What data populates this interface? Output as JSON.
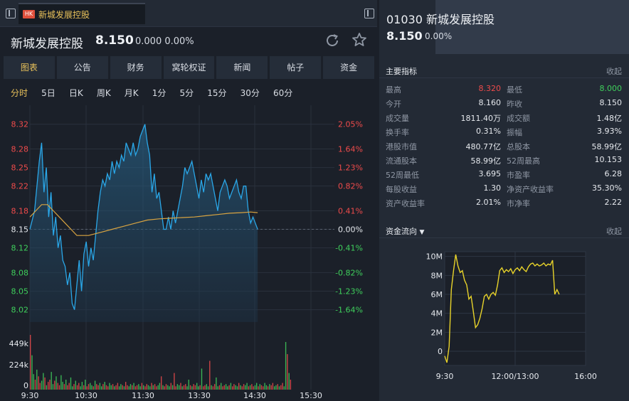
{
  "tab": {
    "badge": "HK",
    "title": "新城发展控股"
  },
  "quote": {
    "name": "新城发展控股",
    "price": "8.150",
    "change": "0.000",
    "change_pct": "0.00%"
  },
  "nav_tabs": [
    "图表",
    "公告",
    "财务",
    "窝轮权证",
    "新闻",
    "帖子",
    "资金"
  ],
  "period_tabs": [
    "分时",
    "5日",
    "日K",
    "周K",
    "月K",
    "1分",
    "5分",
    "15分",
    "30分",
    "60分"
  ],
  "right": {
    "code": "01030",
    "name": "新城发展控股",
    "price": "8.150",
    "change_pct": "0.00%",
    "metrics_title": "主要指标",
    "collapse_label": "收起",
    "flow_title": "资金流向",
    "metrics": [
      [
        {
          "label": "最高",
          "value": "8.320",
          "color": "#ef4b4b"
        },
        {
          "label": "最低",
          "value": "8.000",
          "color": "#3fcf5c"
        }
      ],
      [
        {
          "label": "今开",
          "value": "8.160",
          "color": "#e6e9ee"
        },
        {
          "label": "昨收",
          "value": "8.150",
          "color": "#e6e9ee"
        }
      ],
      [
        {
          "label": "成交量",
          "value": "1811.40万",
          "color": "#e6e9ee"
        },
        {
          "label": "成交额",
          "value": "1.48亿",
          "color": "#e6e9ee"
        }
      ],
      [
        {
          "label": "换手率",
          "value": "0.31%",
          "color": "#e6e9ee"
        },
        {
          "label": "振幅",
          "value": "3.93%",
          "color": "#e6e9ee"
        }
      ],
      [
        {
          "label": "港股市值",
          "value": "480.77亿",
          "color": "#e6e9ee"
        },
        {
          "label": "总股本",
          "value": "58.99亿",
          "color": "#e6e9ee"
        }
      ],
      [
        {
          "label": "流通股本",
          "value": "58.99亿",
          "color": "#e6e9ee"
        },
        {
          "label": "52周最高",
          "value": "10.153",
          "color": "#e6e9ee"
        }
      ],
      [
        {
          "label": "52周最低",
          "value": "3.695",
          "color": "#e6e9ee"
        },
        {
          "label": "市盈率",
          "value": "6.28",
          "color": "#e6e9ee"
        }
      ],
      [
        {
          "label": "每股收益",
          "value": "1.30",
          "color": "#e6e9ee"
        },
        {
          "label": "净资产收益率",
          "value": "35.30%",
          "color": "#e6e9ee"
        }
      ],
      [
        {
          "label": "资产收益率",
          "value": "2.01%",
          "color": "#e6e9ee"
        },
        {
          "label": "市净率",
          "value": "2.22",
          "color": "#e6e9ee"
        }
      ]
    ]
  },
  "colors": {
    "up": "#ef4b4b",
    "down": "#3fcf5c",
    "accent": "#e8c15a",
    "price_line": "#2aa7e8",
    "avg_line": "#d9a441",
    "flow_line": "#e8d32a"
  },
  "chart_data": [
    {
      "type": "line",
      "name": "intraday",
      "x_ticks": [
        "9:30",
        "10:30",
        "11:30",
        "13:30",
        "14:30",
        "15:30"
      ],
      "y_ticks_price": [
        "8.32",
        "8.28",
        "8.25",
        "8.22",
        "8.18",
        "8.15",
        "8.12",
        "8.08",
        "8.05",
        "8.02"
      ],
      "y_ticks_pct": [
        "2.05%",
        "1.64%",
        "1.23%",
        "0.82%",
        "0.41%",
        "0.00%",
        "-0.41%",
        "-0.82%",
        "-1.23%",
        "-1.64%"
      ],
      "ylim": [
        8.0,
        8.33
      ],
      "prev_close": 8.15,
      "price_series": [
        [
          0,
          8.15
        ],
        [
          4,
          8.18
        ],
        [
          8,
          8.26
        ],
        [
          10,
          8.29
        ],
        [
          12,
          8.21
        ],
        [
          14,
          8.25
        ],
        [
          16,
          8.17
        ],
        [
          18,
          8.21
        ],
        [
          20,
          8.14
        ],
        [
          22,
          8.17
        ],
        [
          24,
          8.12
        ],
        [
          26,
          8.14
        ],
        [
          28,
          8.1
        ],
        [
          30,
          8.09
        ],
        [
          32,
          8.06
        ],
        [
          34,
          8.08
        ],
        [
          36,
          8.03
        ],
        [
          38,
          8.02
        ],
        [
          40,
          8.06
        ],
        [
          42,
          8.1
        ],
        [
          44,
          8.05
        ],
        [
          46,
          8.11
        ],
        [
          48,
          8.13
        ],
        [
          50,
          8.09
        ],
        [
          52,
          8.12
        ],
        [
          54,
          8.1
        ],
        [
          56,
          8.14
        ],
        [
          58,
          8.18
        ],
        [
          60,
          8.21
        ],
        [
          62,
          8.23
        ],
        [
          64,
          8.22
        ],
        [
          66,
          8.24
        ],
        [
          68,
          8.23
        ],
        [
          70,
          8.26
        ],
        [
          72,
          8.24
        ],
        [
          74,
          8.26
        ],
        [
          76,
          8.25
        ],
        [
          78,
          8.27
        ],
        [
          80,
          8.26
        ],
        [
          82,
          8.29
        ],
        [
          84,
          8.28
        ],
        [
          86,
          8.27
        ],
        [
          88,
          8.29
        ],
        [
          90,
          8.27
        ],
        [
          92,
          8.28
        ],
        [
          94,
          8.3
        ],
        [
          96,
          8.31
        ],
        [
          98,
          8.32
        ],
        [
          100,
          8.29
        ],
        [
          102,
          8.27
        ],
        [
          104,
          8.21
        ],
        [
          106,
          8.24
        ],
        [
          108,
          8.2
        ],
        [
          110,
          8.21
        ],
        [
          112,
          8.18
        ],
        [
          114,
          8.15
        ],
        [
          116,
          8.15
        ],
        [
          118,
          8.17
        ],
        [
          120,
          8.15
        ],
        [
          122,
          8.18
        ],
        [
          124,
          8.16
        ],
        [
          126,
          8.18
        ],
        [
          128,
          8.2
        ],
        [
          130,
          8.22
        ],
        [
          132,
          8.25
        ],
        [
          134,
          8.24
        ],
        [
          136,
          8.25
        ],
        [
          138,
          8.26
        ],
        [
          140,
          8.24
        ],
        [
          142,
          8.22
        ],
        [
          144,
          8.2
        ],
        [
          146,
          8.23
        ],
        [
          148,
          8.21
        ],
        [
          150,
          8.24
        ],
        [
          152,
          8.23
        ],
        [
          154,
          8.24
        ],
        [
          156,
          8.22
        ],
        [
          158,
          8.2
        ],
        [
          160,
          8.18
        ],
        [
          162,
          8.21
        ],
        [
          164,
          8.22
        ],
        [
          166,
          8.23
        ],
        [
          168,
          8.22
        ],
        [
          170,
          8.2
        ],
        [
          172,
          8.21
        ],
        [
          174,
          8.22
        ],
        [
          176,
          8.23
        ],
        [
          178,
          8.21
        ],
        [
          180,
          8.2
        ],
        [
          182,
          8.22
        ],
        [
          184,
          8.22
        ],
        [
          186,
          8.18
        ],
        [
          188,
          8.16
        ],
        [
          190,
          8.17
        ],
        [
          192,
          8.16
        ],
        [
          194,
          8.15
        ]
      ],
      "avg_series": [
        [
          0,
          8.17
        ],
        [
          5,
          8.18
        ],
        [
          10,
          8.19
        ],
        [
          15,
          8.19
        ],
        [
          20,
          8.18
        ],
        [
          25,
          8.17
        ],
        [
          30,
          8.16
        ],
        [
          35,
          8.15
        ],
        [
          40,
          8.14
        ],
        [
          45,
          8.14
        ],
        [
          50,
          8.14
        ],
        [
          60,
          8.145
        ],
        [
          70,
          8.15
        ],
        [
          80,
          8.155
        ],
        [
          90,
          8.16
        ],
        [
          100,
          8.165
        ],
        [
          110,
          8.167
        ],
        [
          120,
          8.168
        ],
        [
          130,
          8.169
        ],
        [
          140,
          8.17
        ],
        [
          150,
          8.172
        ],
        [
          160,
          8.174
        ],
        [
          170,
          8.176
        ],
        [
          180,
          8.177
        ],
        [
          188,
          8.178
        ],
        [
          194,
          8.177
        ]
      ]
    },
    {
      "type": "bar",
      "name": "volume",
      "y_ticks": [
        "449k",
        "224k",
        "0"
      ],
      "ylim": [
        0,
        449000
      ],
      "values": [
        520000,
        310000,
        140000,
        90000,
        180000,
        120000,
        60000,
        80000,
        150000,
        110000,
        40000,
        70000,
        90000,
        160000,
        50000,
        80000,
        120000,
        60000,
        40000,
        130000,
        70000,
        50000,
        90000,
        40000,
        60000,
        110000,
        30000,
        50000,
        80000,
        40000,
        60000,
        30000,
        70000,
        40000,
        90000,
        30000,
        50000,
        60000,
        40000,
        30000,
        80000,
        50000,
        40000,
        60000,
        30000,
        50000,
        70000,
        40000,
        30000,
        60000,
        40000,
        50000,
        30000,
        40000,
        60000,
        30000,
        50000,
        40000,
        30000,
        70000,
        40000,
        30000,
        50000,
        40000,
        60000,
        30000,
        40000,
        50000,
        30000,
        60000,
        40000,
        30000,
        50000,
        40000,
        30000,
        60000,
        40000,
        50000,
        30000,
        40000,
        60000,
        120000,
        40000,
        30000,
        50000,
        40000,
        30000,
        60000,
        40000,
        150000,
        30000,
        50000,
        40000,
        60000,
        30000,
        40000,
        50000,
        30000,
        90000,
        40000,
        30000,
        50000,
        40000,
        60000,
        30000,
        40000,
        190000,
        30000,
        40000,
        50000,
        30000,
        260000,
        40000,
        30000,
        50000,
        110000,
        30000,
        40000,
        60000,
        30000,
        40000,
        50000,
        30000,
        40000,
        60000,
        30000,
        50000,
        40000,
        30000,
        60000,
        40000,
        30000,
        50000,
        40000,
        60000,
        30000,
        40000,
        50000,
        30000,
        40000,
        60000,
        30000,
        50000,
        40000,
        30000,
        60000,
        40000,
        30000,
        50000,
        40000,
        60000,
        30000,
        40000,
        50000,
        30000,
        40000,
        60000,
        30000,
        430000,
        320000,
        150000,
        90000
      ]
    },
    {
      "type": "line",
      "name": "资金流向",
      "x_ticks": [
        "9:30",
        "12:00/13:00",
        "16:00"
      ],
      "y_ticks": [
        "10M",
        "8M",
        "6M",
        "4M",
        "2M",
        "0"
      ],
      "ylim": [
        -1.5,
        10.5
      ],
      "series": [
        [
          0,
          -0.5
        ],
        [
          1,
          -1.2
        ],
        [
          2,
          0.5
        ],
        [
          3,
          6.5
        ],
        [
          4,
          8.5
        ],
        [
          5,
          10.2
        ],
        [
          6,
          9.0
        ],
        [
          7,
          8.3
        ],
        [
          8,
          8.5
        ],
        [
          9,
          7.5
        ],
        [
          10,
          7.0
        ],
        [
          11,
          5.5
        ],
        [
          12,
          5.8
        ],
        [
          13,
          4.2
        ],
        [
          14,
          2.5
        ],
        [
          15,
          2.8
        ],
        [
          16,
          3.5
        ],
        [
          17,
          4.5
        ],
        [
          18,
          5.8
        ],
        [
          19,
          6.0
        ],
        [
          20,
          5.5
        ],
        [
          21,
          6.0
        ],
        [
          22,
          6.2
        ],
        [
          23,
          5.9
        ],
        [
          24,
          7.0
        ],
        [
          25,
          8.5
        ],
        [
          26,
          8.8
        ],
        [
          27,
          8.3
        ],
        [
          28,
          8.6
        ],
        [
          29,
          8.4
        ],
        [
          30,
          8.7
        ],
        [
          31,
          8.2
        ],
        [
          32,
          8.6
        ],
        [
          33,
          8.8
        ],
        [
          34,
          8.5
        ],
        [
          35,
          8.9
        ],
        [
          36,
          8.6
        ],
        [
          37,
          8.4
        ],
        [
          38,
          8.9
        ],
        [
          39,
          9.2
        ],
        [
          40,
          9.3
        ],
        [
          41,
          9.0
        ],
        [
          42,
          9.2
        ],
        [
          43,
          9.0
        ],
        [
          44,
          9.1
        ],
        [
          45,
          9.3
        ],
        [
          46,
          9.0
        ],
        [
          47,
          9.2
        ],
        [
          48,
          9.1
        ],
        [
          49,
          9.6
        ],
        [
          50,
          6.0
        ],
        [
          51,
          6.5
        ],
        [
          52,
          6.0
        ]
      ],
      "x_max": 64
    }
  ]
}
